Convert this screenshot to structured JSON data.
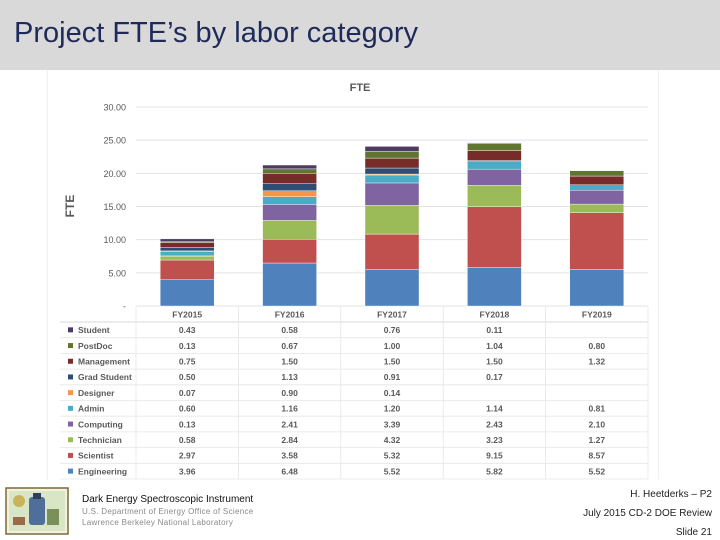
{
  "slide": {
    "title": "Project FTE’s by labor category"
  },
  "chart_data": {
    "type": "bar",
    "stacked": true,
    "title": "FTE",
    "ylabel": "FTE",
    "xlabel": "",
    "ylim": [
      0,
      30
    ],
    "yticks": [
      "-",
      "5.00",
      "10.00",
      "15.00",
      "20.00",
      "25.00",
      "30.00"
    ],
    "ytick_values": [
      0,
      5,
      10,
      15,
      20,
      25,
      30
    ],
    "categories": [
      "FY2015",
      "FY2016",
      "FY2017",
      "FY2018",
      "FY2019"
    ],
    "series": [
      {
        "name": "Engineering",
        "color": "#4f81bd",
        "values": [
          3.96,
          6.48,
          5.52,
          5.82,
          5.52
        ],
        "labels": [
          "3.96",
          "6.48",
          "5.52",
          "5.82",
          "5.52"
        ]
      },
      {
        "name": "Scientist",
        "color": "#c0504d",
        "values": [
          2.97,
          3.58,
          5.32,
          9.15,
          8.57
        ],
        "labels": [
          "2.97",
          "3.58",
          "5.32",
          "9.15",
          "8.57"
        ]
      },
      {
        "name": "Technician",
        "color": "#9bbb59",
        "values": [
          0.58,
          2.84,
          4.32,
          3.23,
          1.27
        ],
        "labels": [
          "0.58",
          "2.84",
          "4.32",
          "3.23",
          "1.27"
        ]
      },
      {
        "name": "Computing",
        "color": "#8064a2",
        "values": [
          0.13,
          2.41,
          3.39,
          2.43,
          2.1
        ],
        "labels": [
          "0.13",
          "2.41",
          "3.39",
          "2.43",
          "2.10"
        ]
      },
      {
        "name": "Admin",
        "color": "#4bacc6",
        "values": [
          0.6,
          1.16,
          1.2,
          1.14,
          0.81
        ],
        "labels": [
          "0.60",
          "1.16",
          "1.20",
          "1.14",
          "0.81"
        ]
      },
      {
        "name": "Designer",
        "color": "#f79646",
        "values": [
          0.07,
          0.9,
          0.14,
          0,
          0
        ],
        "labels": [
          "0.07",
          "0.90",
          "0.14",
          "",
          ""
        ]
      },
      {
        "name": "Grad Student",
        "color": "#2c4d75",
        "values": [
          0.5,
          1.13,
          0.91,
          0.17,
          0
        ],
        "labels": [
          "0.50",
          "1.13",
          "0.91",
          "0.17",
          ""
        ]
      },
      {
        "name": "Management",
        "color": "#772c2a",
        "values": [
          0.75,
          1.5,
          1.5,
          1.5,
          1.32
        ],
        "labels": [
          "0.75",
          "1.50",
          "1.50",
          "1.50",
          "1.32"
        ]
      },
      {
        "name": "PostDoc",
        "color": "#5f7530",
        "values": [
          0.13,
          0.67,
          1.0,
          1.04,
          0.8
        ],
        "labels": [
          "0.13",
          "0.67",
          "1.00",
          "1.04",
          "0.80"
        ]
      },
      {
        "name": "Student",
        "color": "#4d3b62",
        "values": [
          0.43,
          0.58,
          0.76,
          0.11,
          0
        ],
        "labels": [
          "0.43",
          "0.58",
          "0.76",
          "0.11",
          ""
        ]
      }
    ],
    "table_row_order": [
      "Student",
      "PostDoc",
      "Management",
      "Grad Student",
      "Designer",
      "Admin",
      "Computing",
      "Technician",
      "Scientist",
      "Engineering"
    ]
  },
  "footer": {
    "org_name": "Dark Energy Spectroscopic Instrument",
    "department": "U.S. Department of Energy Office of Science",
    "lab": "Lawrence Berkeley National Laboratory",
    "presenter": "H. Heetderks – P2",
    "review": "July 2015 CD-2 DOE Review",
    "slide_number": "Slide 21"
  }
}
